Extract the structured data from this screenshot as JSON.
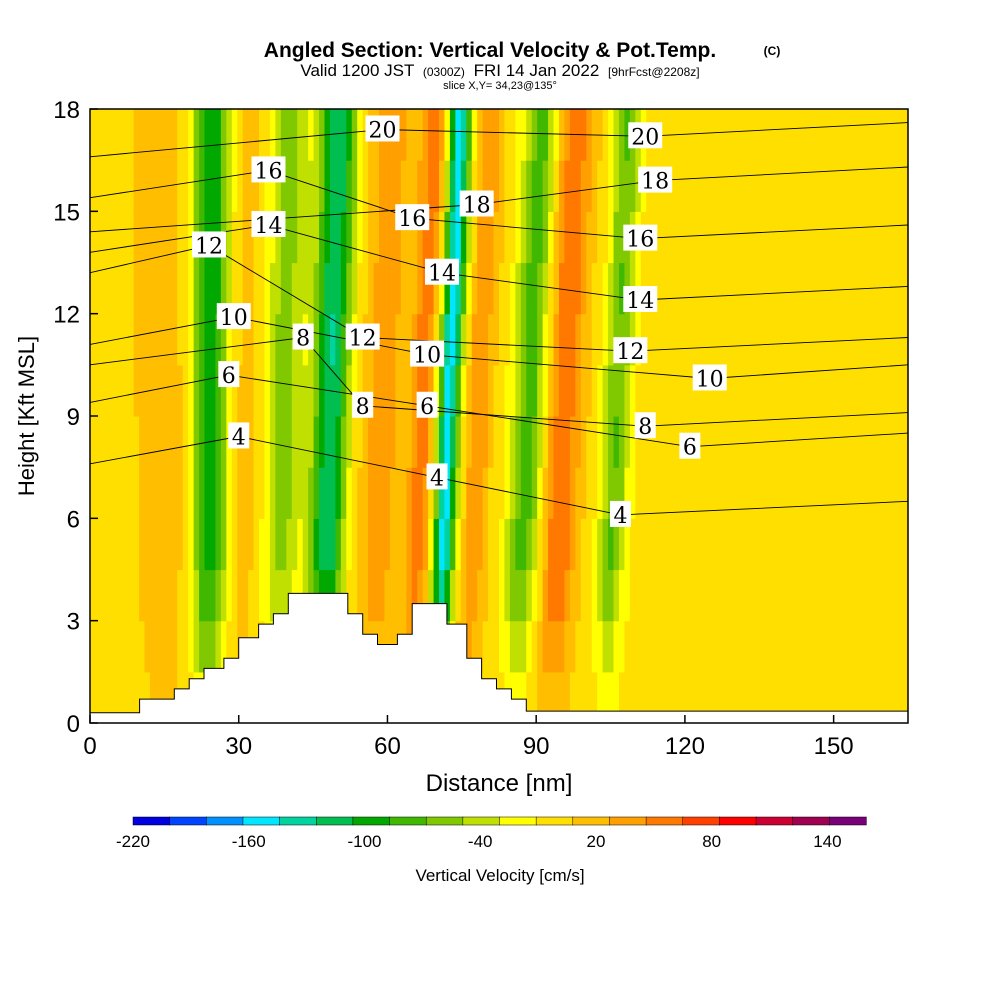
{
  "chart_data": {
    "type": "heatmap",
    "title": "Angled Section: Vertical Velocity & Pot.Temp.",
    "title_mark": "(C)",
    "subtitle_parts": [
      "Valid 1200 JST",
      "(0300Z)",
      "FRI 14 Jan 2022",
      "[9hrFcst@2208z]"
    ],
    "slice_note": "slice X,Y= 34,23@135°",
    "xlabel": "Distance [nm]",
    "ylabel": "Height [Kft MSL]",
    "xlim": [
      0,
      165
    ],
    "ylim": [
      0,
      18
    ],
    "x_ticks": [
      0,
      30,
      60,
      90,
      120,
      150
    ],
    "y_ticks": [
      0,
      3,
      6,
      9,
      12,
      15,
      18
    ],
    "colorbar": {
      "label": "Vertical Velocity [cm/s]",
      "min": -220,
      "max": 160,
      "step": 20,
      "tick_labels": [
        "-220",
        "-160",
        "-100",
        "-40",
        "20",
        "80",
        "140"
      ],
      "tick_values": [
        -220,
        -160,
        -100,
        -40,
        20,
        80,
        140
      ],
      "colors": [
        "#0000e0",
        "#0044ff",
        "#0090ff",
        "#00e6ff",
        "#00d2a0",
        "#00be50",
        "#00a800",
        "#40b800",
        "#80c800",
        "#bfe000",
        "#ffff00",
        "#ffdf00",
        "#ffbf00",
        "#ff9f00",
        "#ff7800",
        "#ff4000",
        "#ff0000",
        "#cc0033",
        "#a00050",
        "#780078"
      ]
    },
    "velocity_bands": [
      {
        "x": 15,
        "width": 4,
        "value": 40
      },
      {
        "x": 24,
        "width": 3.5,
        "value": -100
      },
      {
        "x": 30,
        "width": 3.5,
        "value": 30
      },
      {
        "x": 38,
        "width": 3.5,
        "value": -50
      },
      {
        "x": 47,
        "width": 3.5,
        "value": -120
      },
      {
        "x": 57,
        "width": 4,
        "value": 50
      },
      {
        "x": 65,
        "width": 2.5,
        "value": 70
      },
      {
        "x": 70,
        "width": 2.2,
        "value": -150
      },
      {
        "x": 76,
        "width": 2.2,
        "value": 60
      },
      {
        "x": 86,
        "width": 3.5,
        "value": -70
      },
      {
        "x": 93,
        "width": 3.5,
        "value": 80
      },
      {
        "x": 104,
        "width": 3,
        "value": -60
      },
      {
        "x": 116,
        "width": 8,
        "value": 10
      },
      {
        "x": 140,
        "width": 10,
        "value": 20
      }
    ],
    "terrain": [
      [
        0,
        0.3
      ],
      [
        10,
        0.3
      ],
      [
        10,
        0.7
      ],
      [
        17,
        0.7
      ],
      [
        17,
        1.0
      ],
      [
        20,
        1.0
      ],
      [
        20,
        1.3
      ],
      [
        23,
        1.3
      ],
      [
        23,
        1.6
      ],
      [
        27,
        1.6
      ],
      [
        27,
        1.9
      ],
      [
        30,
        1.9
      ],
      [
        30,
        2.5
      ],
      [
        34,
        2.5
      ],
      [
        34,
        2.9
      ],
      [
        37,
        2.9
      ],
      [
        37,
        3.2
      ],
      [
        40,
        3.2
      ],
      [
        40,
        3.8
      ],
      [
        52,
        3.8
      ],
      [
        52,
        3.2
      ],
      [
        55,
        3.2
      ],
      [
        55,
        2.6
      ],
      [
        58,
        2.6
      ],
      [
        58,
        2.3
      ],
      [
        62,
        2.3
      ],
      [
        62,
        2.6
      ],
      [
        65,
        2.6
      ],
      [
        65,
        3.5
      ],
      [
        72,
        3.5
      ],
      [
        72,
        2.9
      ],
      [
        76,
        2.9
      ],
      [
        76,
        1.9
      ],
      [
        79,
        1.9
      ],
      [
        79,
        1.3
      ],
      [
        82,
        1.3
      ],
      [
        82,
        1.0
      ],
      [
        85,
        1.0
      ],
      [
        85,
        0.7
      ],
      [
        88,
        0.7
      ],
      [
        88,
        0.35
      ],
      [
        165,
        0.35
      ]
    ],
    "isentropes": [
      {
        "level": 4,
        "labels": [
          [
            30,
            8.4
          ],
          [
            70,
            7.2
          ],
          [
            107,
            6.1
          ]
        ]
      },
      {
        "level": 6,
        "labels": [
          [
            28,
            10.2
          ],
          [
            68,
            9.3
          ],
          [
            121,
            8.1
          ]
        ]
      },
      {
        "level": 8,
        "labels": [
          [
            43,
            11.3
          ],
          [
            55,
            9.3
          ],
          [
            112,
            8.7
          ]
        ]
      },
      {
        "level": 10,
        "labels": [
          [
            29,
            11.9
          ],
          [
            68,
            10.8
          ],
          [
            125,
            10.1
          ]
        ]
      },
      {
        "level": 12,
        "labels": [
          [
            24,
            14.0
          ],
          [
            55,
            11.3
          ],
          [
            109,
            10.9
          ]
        ]
      },
      {
        "level": 14,
        "labels": [
          [
            36,
            14.6
          ],
          [
            71,
            13.2
          ],
          [
            111,
            12.4
          ]
        ]
      },
      {
        "level": 16,
        "labels": [
          [
            36,
            16.2
          ],
          [
            65,
            14.8
          ],
          [
            111,
            14.2
          ]
        ]
      },
      {
        "level": 18,
        "labels": [
          [
            78,
            15.2
          ],
          [
            114,
            15.9
          ]
        ]
      },
      {
        "level": 20,
        "labels": [
          [
            59,
            17.4
          ],
          [
            112,
            17.2
          ]
        ]
      }
    ]
  }
}
